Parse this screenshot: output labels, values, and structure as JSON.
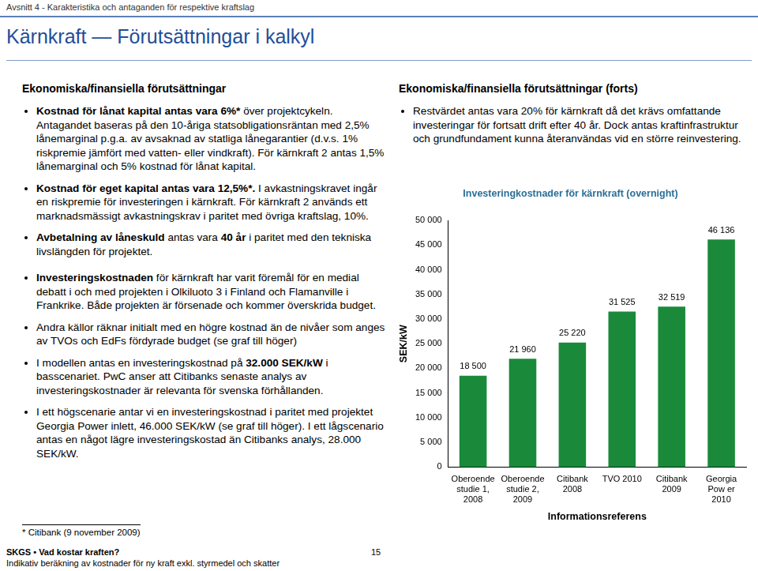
{
  "header": {
    "section": "Avsnitt 4 - Karakteristika och antaganden för respektive kraftslag",
    "title": "Kärnkraft — Förutsättningar i kalkyl"
  },
  "left": {
    "heading": "Ekonomiska/finansiella förutsättningar",
    "bullets": [
      [
        {
          "text": "Kostnad för lånat kapital antas vara 6%*",
          "bold": true
        },
        {
          "text": " över projektcykeln. Antagandet baseras på den 10-åriga statsobligationsräntan med 2,5% lånemarginal p.g.a. av avsaknad av statliga lånegarantier (d.v.s. 1% riskpremie jämfört med vatten- eller vindkraft). För kärnkraft 2 antas 1,5% lånemarginal och 5% kostnad för lånat kapital.",
          "bold": false
        }
      ],
      [
        {
          "text": "Kostnad för eget kapital antas vara 12,5%*.",
          "bold": true
        },
        {
          "text": " I avkastningskravet ingår en riskpremie för investeringen i kärnkraft. För kärnkraft 2 används ett marknadsmässigt avkastningskrav i paritet med övriga kraftslag, 10%.",
          "bold": false
        }
      ],
      [
        {
          "text": "Avbetalning av låneskuld",
          "bold": true
        },
        {
          "text": " antas vara ",
          "bold": false
        },
        {
          "text": "40 år",
          "bold": true
        },
        {
          "text": " i paritet med den tekniska livslängden för projektet.",
          "bold": false
        }
      ],
      [
        {
          "text": "Investeringskostnaden",
          "bold": true
        },
        {
          "text": " för kärnkraft har varit föremål för en medial debatt i och med projekten i Olkiluoto 3 i Finland och Flamanville i Frankrike. Både projekten är försenade och kommer överskrida budget.",
          "bold": false
        }
      ],
      [
        {
          "text": "Andra källor räknar initialt med en högre kostnad än de nivåer som anges av TVOs och EdFs fördyrade budget (se graf till höger)",
          "bold": false
        }
      ],
      [
        {
          "text": "I modellen antas en investeringskostnad på ",
          "bold": false
        },
        {
          "text": "32.000 SEK/kW",
          "bold": true
        },
        {
          "text": " i basscenariet. PwC anser att Citibanks senaste analys av investeringskostnader är relevanta för svenska förhållanden.",
          "bold": false
        }
      ],
      [
        {
          "text": "I ett högscenarie antar vi en investeringskostnad i paritet med projektet Georgia Power inlett, 46.000 SEK/kW (se graf till höger). I ett lågscenario antas en något lägre investeringskostad än Citibanks analys, 28.000 SEK/kW.",
          "bold": false
        }
      ]
    ]
  },
  "right": {
    "heading": "Ekonomiska/finansiella förutsättningar (forts)",
    "bullets": [
      [
        {
          "text": "Restvärdet antas vara 20% för kärnkraft då det krävs omfattande investeringar för fortsatt drift efter 40 år. Dock antas kraftinfrastruktur och grundfundament kunna återanvändas vid en större reinvestering.",
          "bold": false
        }
      ]
    ]
  },
  "chart_data": {
    "type": "bar",
    "title": "Investeringkostnader för kärnkraft (overnight)",
    "x_label": "Informationsreferens",
    "y_label": "SEK/kW",
    "categories": [
      [
        "Oberoende",
        "studie 1,",
        "2008"
      ],
      [
        "Oberoende",
        "studie 2,",
        "2009"
      ],
      [
        "Citibank",
        "2008"
      ],
      [
        "TVO 2010"
      ],
      [
        "Citibank",
        "2009"
      ],
      [
        "Georgia",
        "Pow er",
        "2010"
      ]
    ],
    "values": [
      18500,
      21960,
      25220,
      31525,
      32519,
      46136
    ],
    "value_labels": [
      "18 500",
      "21 960",
      "25 220",
      "31 525",
      "32 519",
      "46 136"
    ],
    "data_labels": true,
    "color": "#1a8a3a",
    "grid": false,
    "ylim": [
      0,
      50000
    ],
    "yticks": [
      0,
      {
        "value": 5000,
        "label": "5 000"
      },
      {
        "value": 10000,
        "label": "10 000"
      },
      {
        "value": 15000,
        "label": "15 000"
      },
      {
        "value": 20000,
        "label": "20 000"
      },
      {
        "value": 25000,
        "label": "25 000"
      },
      {
        "value": 30000,
        "label": "30 000"
      },
      {
        "value": 35000,
        "label": "35 000"
      },
      {
        "value": 40000,
        "label": "40 000"
      },
      {
        "value": 45000,
        "label": "45 000"
      },
      {
        "value": 50000,
        "label": "50 000"
      }
    ]
  },
  "footnote": "* Citibank (9 november 2009)",
  "footer": {
    "line1": "SKGS • Vad kostar kraften?",
    "line2": "Indikativ beräkning av kostnader för ny kraft exkl. styrmedel och skatter",
    "page": "15"
  }
}
